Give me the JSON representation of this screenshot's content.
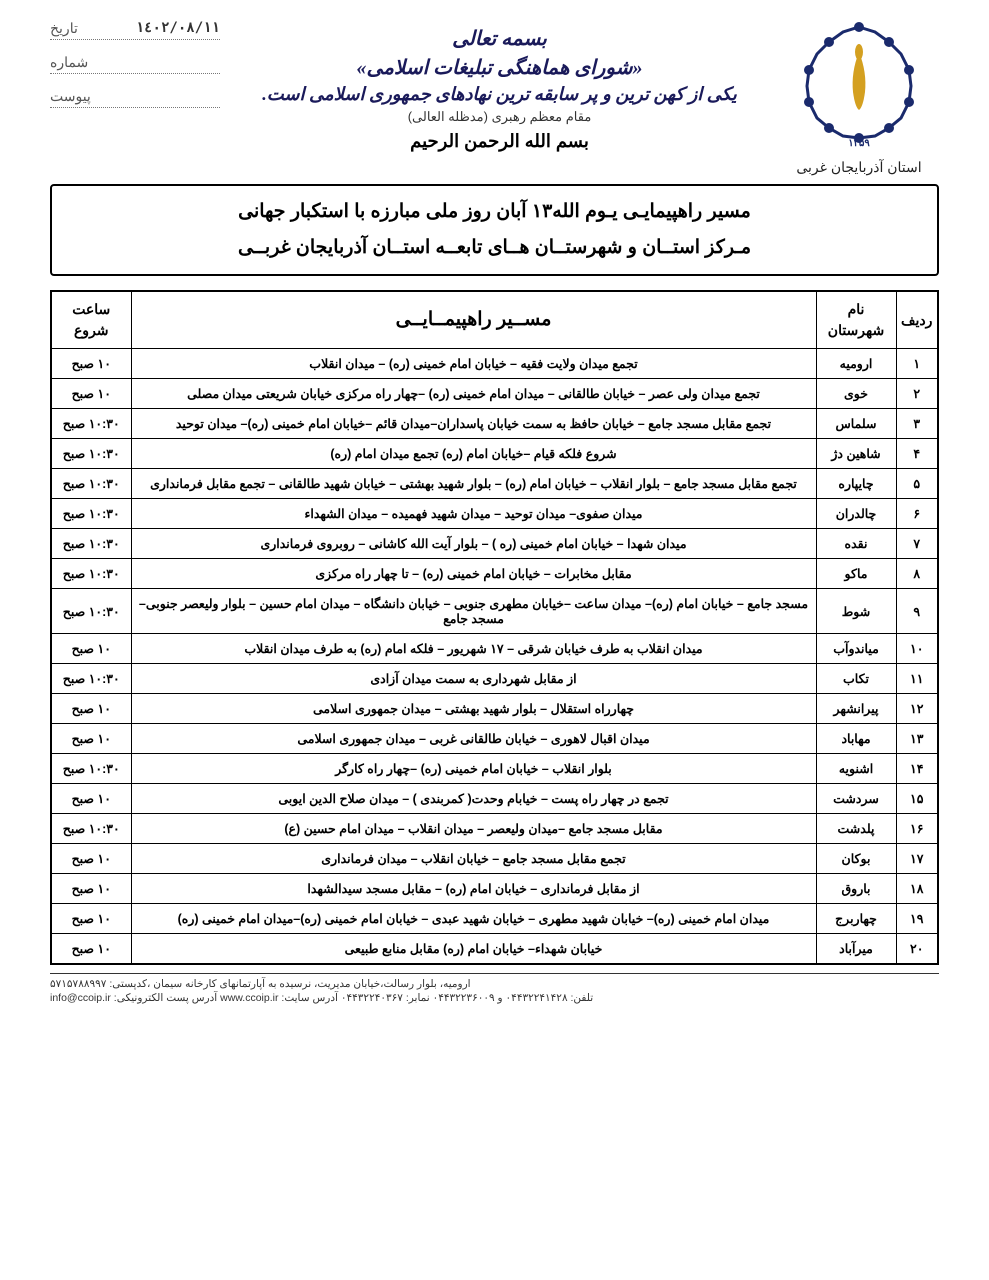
{
  "header": {
    "province": "استان آذربایجان غربی",
    "script1": "بسمه تعالی",
    "script2": "«شورای هماهنگی تبلیغات اسلامی»",
    "script3": "یکی از کهن ترین و پر سابقه ترین نهادهای جمهوری اسلامی است.",
    "leader": "مقام معظم رهبری (مدظله العالی)",
    "besm": "بسم الله الرحمن الرحیم",
    "date_label": "تاریخ",
    "date_value": "١٤٠٢/٠٨/١١",
    "number_label": "شماره",
    "attach_label": "پیوست"
  },
  "title": {
    "line1": "مسیر راهپیمایـی یـوم الله۱۳ آبان روز ملی مبارزه با استکبار جهانی",
    "line2": "مـرکز استــان و شهرستــان هــای تابعــه استــان آذربایجان غربــی"
  },
  "table": {
    "headers": {
      "row": "ردیف",
      "city": "نام شهرستان",
      "route": "مســیر راهپیمــایــی",
      "time": "ساعت شروع"
    },
    "rows": [
      {
        "n": "۱",
        "city": "ارومیه",
        "route": "تجمع میدان ولایت فقیه – خیابان امام خمینی (ره) – میدان انقلاب",
        "time": "۱۰ صبح"
      },
      {
        "n": "۲",
        "city": "خوی",
        "route": "تجمع میدان ولی عصر – خیابان طالقانی – میدان امام خمینی (ره) –چهار راه مرکزی خیابان شریعتی میدان مصلی",
        "time": "۱۰ صبح"
      },
      {
        "n": "۳",
        "city": "سلماس",
        "route": "تجمع مقابل مسجد جامع – خیابان حافظ به سمت خیابان پاسداران–میدان قائم –خیابان امام خمینی (ره)– میدان توحید",
        "time": "۱۰:۳۰ صبح"
      },
      {
        "n": "۴",
        "city": "شاهین دژ",
        "route": "شروع فلکه قیام –خیابان امام (ره) تجمع میدان امام (ره)",
        "time": "۱۰:۳۰ صبح"
      },
      {
        "n": "۵",
        "city": "چایپاره",
        "route": "تجمع مقابل مسجد جامع – بلوار انقلاب – خیابان امام (ره) – بلوار شهید بهشتی – خیابان شهید طالقانی – تجمع مقابل فرمانداری",
        "time": "۱۰:۳۰ صبح"
      },
      {
        "n": "۶",
        "city": "چالدران",
        "route": "میدان صفوی– میدان توحید – میدان شهید فهمیده – میدان الشهداء",
        "time": "۱۰:۳۰ صبح"
      },
      {
        "n": "۷",
        "city": "نقده",
        "route": "میدان شهدا – خیابان امام خمینی (ره ) – بلوار آیت الله کاشانی – روبروی فرمانداری",
        "time": "۱۰:۳۰ صبح"
      },
      {
        "n": "۸",
        "city": "ماکو",
        "route": "مقابل مخابرات – خیابان امام خمینی (ره) – تا چهار راه مرکزی",
        "time": "۱۰:۳۰ صبح"
      },
      {
        "n": "۹",
        "city": "شوط",
        "route": "مسجد جامع – خیابان امام (ره)– میدان ساعت –خیابان مطهری جنوبی – خیابان دانشگاه – میدان امام حسین – بلوار ولیعصر جنوبی– مسجد جامع",
        "time": "۱۰:۳۰ صبح"
      },
      {
        "n": "۱۰",
        "city": "میاندوآب",
        "route": "میدان انقلاب به طرف خیابان شرقی – ۱۷ شهریور – فلکه امام (ره) به طرف میدان انقلاب",
        "time": "۱۰ صبح"
      },
      {
        "n": "۱۱",
        "city": "تکاب",
        "route": "از مقابل شهرداری به سمت میدان آزادی",
        "time": "۱۰:۳۰ صبح"
      },
      {
        "n": "۱۲",
        "city": "پیرانشهر",
        "route": "چهارراه استقلال – بلوار شهید بهشتی – میدان جمهوری اسلامی",
        "time": "۱۰ صبح"
      },
      {
        "n": "۱۳",
        "city": "مهاباد",
        "route": "میدان اقبال لاهوری – خیابان طالقانی غربی – میدان جمهوری اسلامی",
        "time": "۱۰ صبح"
      },
      {
        "n": "۱۴",
        "city": "اشنویه",
        "route": "بلوار انقلاب – خیابان امام خمینی (ره) –چهار راه کارگر",
        "time": "۱۰:۳۰ صبح"
      },
      {
        "n": "۱۵",
        "city": "سردشت",
        "route": "تجمع در چهار راه پست – خیابام وحدت( کمربندی ) – میدان صلاح الدین ایوبی",
        "time": "۱۰ صبح"
      },
      {
        "n": "۱۶",
        "city": "پلدشت",
        "route": "مقابل مسجد جامع –میدان ولیعصر – میدان انقلاب – میدان امام حسین (ع)",
        "time": "۱۰:۳۰ صبح"
      },
      {
        "n": "۱۷",
        "city": "بوکان",
        "route": "تجمع مقابل مسجد جامع – خیابان انقلاب – میدان فرمانداری",
        "time": "۱۰ صبح"
      },
      {
        "n": "۱۸",
        "city": "باروق",
        "route": "از مقابل فرمانداری – خیابان امام (ره) – مقابل مسجد سیدالشهدا",
        "time": "۱۰ صبح"
      },
      {
        "n": "۱۹",
        "city": "چهاربرج",
        "route": "میدان امام خمینی (ره)– خیابان شهید مطهری – خیابان شهید عبدی – خیابان امام خمینی (ره)–میدان امام خمینی (ره)",
        "time": "۱۰ صبح"
      },
      {
        "n": "۲۰",
        "city": "میرآباد",
        "route": "خیابان شهداء– خیابان امام (ره) مقابل منابع طبیعی",
        "time": "۱۰ صبح"
      }
    ]
  },
  "footer": {
    "line1": "ارومیه، بلوار رسالت،خیابان مدیریت، نرسیده به آپارتمانهای کارخانه سیمان ،کدپستی: ۵۷۱۵۷۸۸۹۹۷",
    "line2": "تلفن: ۰۴۴۳۲۲۴۱۴۲۸ و ۰۴۴۳۲۲۳۶۰۰۹  نمابر: ۰۴۴۳۲۲۴۰۳۶۷ آدرس سایت: www.ccoip.ir آدرس پست الکترونیکی: info@ccoip.ir"
  },
  "colors": {
    "logo_blue": "#1a2a6c",
    "logo_gold": "#d4a020",
    "text": "#000000",
    "border": "#000000"
  }
}
